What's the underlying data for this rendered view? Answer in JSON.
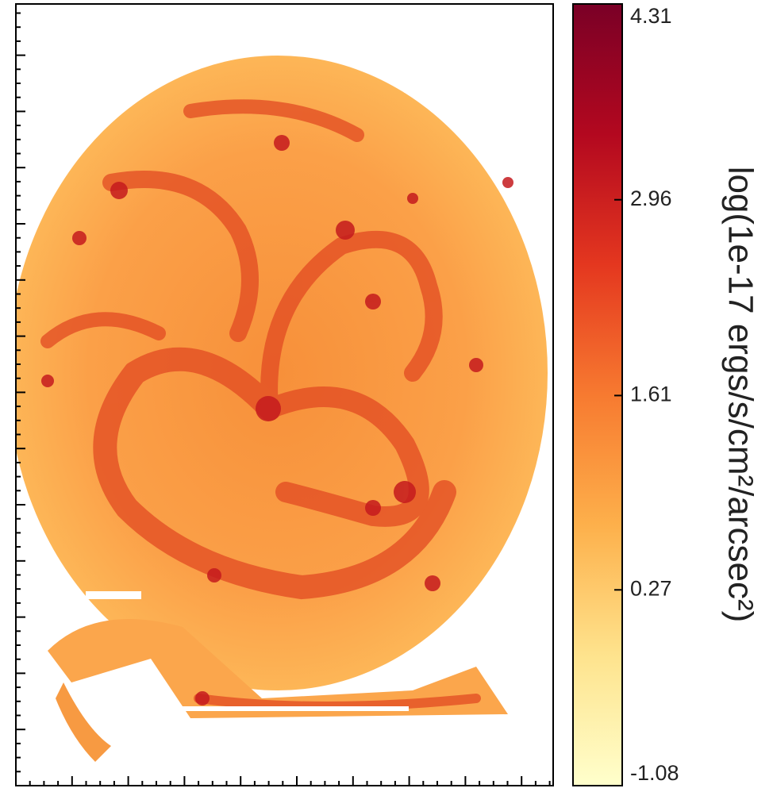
{
  "chart_data": {
    "type": "image",
    "colorbar": {
      "label": "log(1e-17 ergs/s/cm²/arcsec²)",
      "lim": [
        -1.08,
        4.31
      ],
      "ticks": [
        4.31,
        2.96,
        1.61,
        0.27,
        -1.08
      ],
      "colormap": [
        "#ffffcc",
        "#fee38d",
        "#fdb04b",
        "#f77a30",
        "#e4371f",
        "#b3081f",
        "#7a0026"
      ]
    }
  }
}
